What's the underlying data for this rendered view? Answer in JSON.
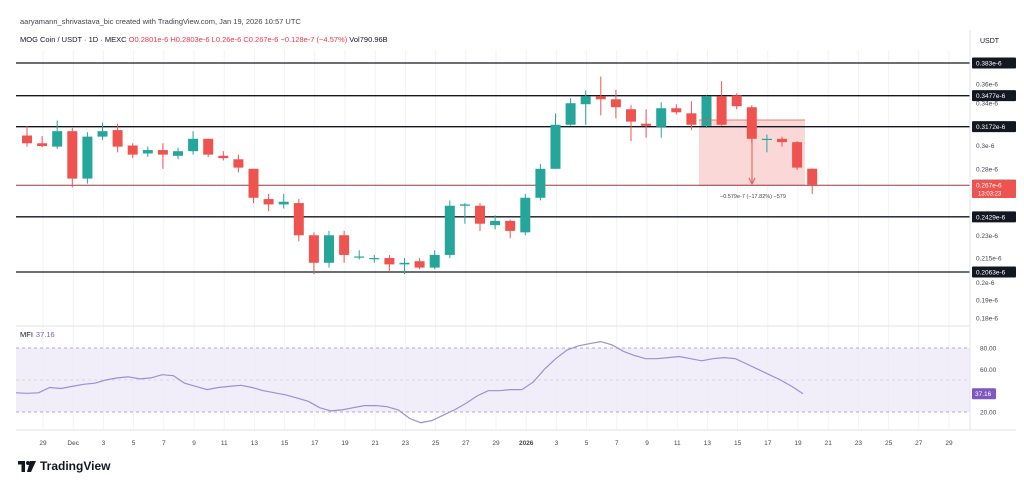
{
  "header": {
    "credit": "aaryamann_shrivastava_bic created with TradingView.com, Jan 19, 2026 10:57 UTC"
  },
  "legend": {
    "symbol": "MOG Coin / USDT · 1D · MEXC",
    "open": "O0.2801e-6",
    "high": "H0.2803e-6",
    "low": "L0.26e-6",
    "close": "C0.267e-6",
    "change": "−0.128e-7 (−4.57%)",
    "volume": "Vol790.96B"
  },
  "currency": "USDT",
  "mfi": {
    "label": "MFI",
    "value": "37.16"
  },
  "brand": {
    "name": "TradingView"
  },
  "colors": {
    "up": "#26a69a",
    "down": "#ef5350",
    "mfi_line": "#9c8fd6",
    "mfi_band": "#ede7f6",
    "measure": "#f9d4d4"
  },
  "chart_data": [
    {
      "type": "candlestick",
      "title": "MOG Coin / USDT · 1D · MEXC",
      "price_labels": [
        "0.36e-6",
        "0.34e-6",
        "0.3e-6",
        "0.28e-6",
        "0.23e-6",
        "0.215e-6",
        "0.2e-6",
        "0.19e-6",
        "0.18e-6"
      ],
      "x_labels": [
        "29",
        "Dec",
        "3",
        "5",
        "7",
        "9",
        "11",
        "13",
        "15",
        "17",
        "19",
        "21",
        "23",
        "25",
        "27",
        "29",
        "2026",
        "3",
        "5",
        "7",
        "9",
        "11",
        "13",
        "15",
        "17",
        "19",
        "21",
        "23",
        "25",
        "27",
        "29"
      ],
      "horizontal_levels": [
        "0.383e-6",
        "0.3477e-6",
        "0.3172e-6",
        "0.2667e-6",
        "0.2429e-6",
        "0.2063e-6"
      ],
      "current_price": {
        "label": "0.267e-6",
        "countdown": "13:03:23"
      },
      "measure": {
        "label": "−0.579e-7 (−17.82%) −579"
      },
      "candles": [
        {
          "date": "Nov 28",
          "o": 0.309,
          "h": 0.318,
          "l": 0.299,
          "c": 0.302
        },
        {
          "date": "Nov 29",
          "o": 0.302,
          "h": 0.3085,
          "l": 0.2985,
          "c": 0.2995
        },
        {
          "date": "Nov 30",
          "o": 0.299,
          "h": 0.323,
          "l": 0.297,
          "c": 0.313
        },
        {
          "date": "Dec 1",
          "o": 0.313,
          "h": 0.316,
          "l": 0.265,
          "c": 0.272
        },
        {
          "date": "Dec 2",
          "o": 0.272,
          "h": 0.312,
          "l": 0.268,
          "c": 0.308
        },
        {
          "date": "Dec 3",
          "o": 0.308,
          "h": 0.321,
          "l": 0.305,
          "c": 0.313
        },
        {
          "date": "Dec 4",
          "o": 0.314,
          "h": 0.32,
          "l": 0.294,
          "c": 0.299
        },
        {
          "date": "Dec 5",
          "o": 0.3,
          "h": 0.302,
          "l": 0.289,
          "c": 0.292
        },
        {
          "date": "Dec 6",
          "o": 0.293,
          "h": 0.299,
          "l": 0.29,
          "c": 0.296
        },
        {
          "date": "Dec 7",
          "o": 0.296,
          "h": 0.302,
          "l": 0.28,
          "c": 0.292
        },
        {
          "date": "Dec 8",
          "o": 0.291,
          "h": 0.298,
          "l": 0.288,
          "c": 0.295
        },
        {
          "date": "Dec 9",
          "o": 0.295,
          "h": 0.313,
          "l": 0.292,
          "c": 0.306
        },
        {
          "date": "Dec 10",
          "o": 0.306,
          "h": 0.306,
          "l": 0.29,
          "c": 0.292
        },
        {
          "date": "Dec 11",
          "o": 0.291,
          "h": 0.295,
          "l": 0.287,
          "c": 0.289
        },
        {
          "date": "Dec 12",
          "o": 0.288,
          "h": 0.292,
          "l": 0.277,
          "c": 0.281
        },
        {
          "date": "Dec 13",
          "o": 0.28,
          "h": 0.28,
          "l": 0.253,
          "c": 0.257
        },
        {
          "date": "Dec 14",
          "o": 0.256,
          "h": 0.26,
          "l": 0.247,
          "c": 0.252
        },
        {
          "date": "Dec 15",
          "o": 0.252,
          "h": 0.26,
          "l": 0.249,
          "c": 0.254
        },
        {
          "date": "Dec 16",
          "o": 0.253,
          "h": 0.256,
          "l": 0.226,
          "c": 0.23
        },
        {
          "date": "Dec 17",
          "o": 0.23,
          "h": 0.232,
          "l": 0.205,
          "c": 0.212
        },
        {
          "date": "Dec 18",
          "o": 0.212,
          "h": 0.233,
          "l": 0.209,
          "c": 0.23
        },
        {
          "date": "Dec 19",
          "o": 0.23,
          "h": 0.233,
          "l": 0.212,
          "c": 0.217
        },
        {
          "date": "Dec 20",
          "o": 0.216,
          "h": 0.22,
          "l": 0.214,
          "c": 0.216
        },
        {
          "date": "Dec 21",
          "o": 0.215,
          "h": 0.217,
          "l": 0.212,
          "c": 0.215
        },
        {
          "date": "Dec 22",
          "o": 0.215,
          "h": 0.217,
          "l": 0.207,
          "c": 0.211
        },
        {
          "date": "Dec 23",
          "o": 0.211,
          "h": 0.215,
          "l": 0.205,
          "c": 0.212
        },
        {
          "date": "Dec 24",
          "o": 0.213,
          "h": 0.215,
          "l": 0.208,
          "c": 0.209
        },
        {
          "date": "Dec 25",
          "o": 0.209,
          "h": 0.22,
          "l": 0.208,
          "c": 0.217
        },
        {
          "date": "Dec 26",
          "o": 0.217,
          "h": 0.255,
          "l": 0.215,
          "c": 0.251
        },
        {
          "date": "Dec 27",
          "o": 0.251,
          "h": 0.253,
          "l": 0.238,
          "c": 0.252
        },
        {
          "date": "Dec 28",
          "o": 0.251,
          "h": 0.253,
          "l": 0.233,
          "c": 0.238
        },
        {
          "date": "Dec 29",
          "o": 0.237,
          "h": 0.244,
          "l": 0.234,
          "c": 0.24
        },
        {
          "date": "Dec 30",
          "o": 0.24,
          "h": 0.241,
          "l": 0.228,
          "c": 0.233
        },
        {
          "date": "Dec 31",
          "o": 0.232,
          "h": 0.26,
          "l": 0.23,
          "c": 0.257
        },
        {
          "date": "Jan 1",
          "o": 0.257,
          "h": 0.284,
          "l": 0.255,
          "c": 0.28
        },
        {
          "date": "Jan 2",
          "o": 0.28,
          "h": 0.33,
          "l": 0.28,
          "c": 0.319
        },
        {
          "date": "Jan 3",
          "o": 0.319,
          "h": 0.345,
          "l": 0.318,
          "c": 0.34
        },
        {
          "date": "Jan 4",
          "o": 0.339,
          "h": 0.353,
          "l": 0.319,
          "c": 0.347
        },
        {
          "date": "Jan 5",
          "o": 0.347,
          "h": 0.368,
          "l": 0.328,
          "c": 0.344
        },
        {
          "date": "Jan 6",
          "o": 0.344,
          "h": 0.354,
          "l": 0.325,
          "c": 0.336
        },
        {
          "date": "Jan 7",
          "o": 0.334,
          "h": 0.338,
          "l": 0.304,
          "c": 0.322
        },
        {
          "date": "Jan 8",
          "o": 0.32,
          "h": 0.334,
          "l": 0.307,
          "c": 0.318
        },
        {
          "date": "Jan 9",
          "o": 0.317,
          "h": 0.341,
          "l": 0.307,
          "c": 0.335
        },
        {
          "date": "Jan 10",
          "o": 0.335,
          "h": 0.339,
          "l": 0.329,
          "c": 0.331
        },
        {
          "date": "Jan 11",
          "o": 0.33,
          "h": 0.342,
          "l": 0.314,
          "c": 0.319
        },
        {
          "date": "Jan 12",
          "o": 0.318,
          "h": 0.348,
          "l": 0.316,
          "c": 0.347
        },
        {
          "date": "Jan 13",
          "o": 0.347,
          "h": 0.363,
          "l": 0.318,
          "c": 0.319
        },
        {
          "date": "Jan 14",
          "o": 0.348,
          "h": 0.35,
          "l": 0.334,
          "c": 0.337
        },
        {
          "date": "Jan 15",
          "o": 0.336,
          "h": 0.338,
          "l": 0.302,
          "c": 0.306
        },
        {
          "date": "Jan 16",
          "o": 0.306,
          "h": 0.31,
          "l": 0.294,
          "c": 0.306
        },
        {
          "date": "Jan 17",
          "o": 0.306,
          "h": 0.308,
          "l": 0.299,
          "c": 0.303
        },
        {
          "date": "Jan 18",
          "o": 0.303,
          "h": 0.304,
          "l": 0.279,
          "c": 0.281
        },
        {
          "date": "Jan 19",
          "o": 0.2801,
          "h": 0.2803,
          "l": 0.26,
          "c": 0.267
        }
      ]
    },
    {
      "type": "line",
      "title": "MFI",
      "value_label": "37.16",
      "y_labels": [
        "80.00",
        "60.00",
        "20.00"
      ],
      "bands": [
        20,
        50,
        80
      ],
      "ylim": [
        0,
        100
      ],
      "values": [
        38,
        37.5,
        38,
        43,
        42,
        44,
        46,
        47,
        50,
        52,
        53,
        51,
        52,
        55,
        54,
        47,
        44,
        41,
        43,
        44,
        45,
        43,
        40,
        38,
        36,
        33,
        30,
        24,
        21,
        22,
        24,
        26,
        26,
        25,
        22,
        14,
        10,
        12,
        17,
        22,
        28,
        35,
        40,
        40,
        41,
        41,
        48,
        60,
        70,
        78,
        82,
        84,
        86,
        83,
        77,
        73,
        70,
        70,
        71,
        72,
        70,
        68,
        70,
        71,
        70,
        65,
        60,
        55,
        50,
        44,
        37.16
      ]
    }
  ]
}
